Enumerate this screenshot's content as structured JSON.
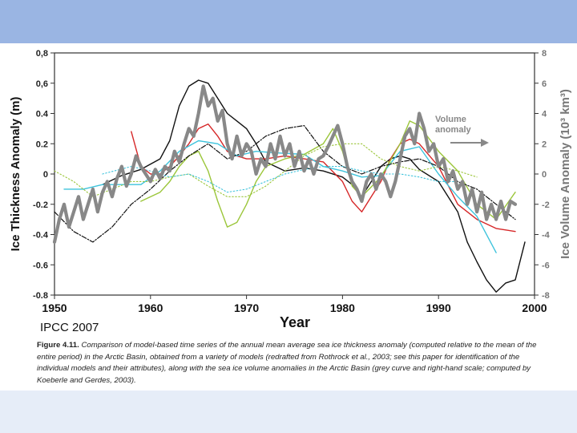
{
  "source_label": "IPCC 2007",
  "caption": {
    "lead": "Figure 4.11.",
    "text": "Comparison of model-based time series of the annual mean average sea ice thickness anomaly (computed relative to the mean of the entire period) in the Arctic Basin, obtained from a variety of models (redrafted from Rothrock et al., 2003; see this paper for identification of the individual models and their attributes), along with the sea ice volume anomalies in the Arctic Basin (grey curve and right-hand scale; computed by Koeberle and Gerdes, 2003)."
  },
  "chart_data": {
    "type": "line",
    "title": "",
    "xlabel": "Year",
    "ylabel": "Ice Thickness Anomaly (m)",
    "ylabel_right": "Ice Volume Anomaly (10³ km³)",
    "xlim": [
      1950,
      2000
    ],
    "ylim": [
      -0.8,
      0.8
    ],
    "ylim_right": [
      -8,
      8
    ],
    "x_ticks": [
      "1950",
      "1960",
      "1970",
      "1980",
      "1990",
      "2000"
    ],
    "y_ticks": [
      "0,8",
      "0,6",
      "0.4",
      "0.2",
      "0",
      "-0.2",
      "-0.4",
      "-0.6",
      "-0.8"
    ],
    "y_ticks_right": [
      "8",
      "6",
      "4",
      "2",
      "0",
      "-2",
      "-4",
      "-6",
      "-8"
    ],
    "grid": false,
    "annotation": {
      "text_line1": "Volume",
      "text_line2": "anomaly",
      "x": 1990,
      "y": 0.27,
      "arrow_color": "#888888"
    },
    "series": [
      {
        "color": "#111111",
        "axis": "left",
        "style": "solid",
        "x": [
          1955,
          1957,
          1959,
          1961,
          1962,
          1963,
          1964,
          1965,
          1966,
          1967,
          1968,
          1969,
          1970,
          1971,
          1972,
          1974,
          1976,
          1978,
          1980,
          1981,
          1982,
          1983,
          1984,
          1985,
          1986,
          1987,
          1988,
          1990,
          1992,
          1993,
          1994,
          1995,
          1996,
          1997,
          1998,
          1999
        ],
        "y": [
          -0.07,
          -0.01,
          0.03,
          0.1,
          0.22,
          0.45,
          0.58,
          0.62,
          0.6,
          0.5,
          0.4,
          0.35,
          0.3,
          0.2,
          0.08,
          0.02,
          0.04,
          0.02,
          -0.02,
          -0.07,
          -0.15,
          -0.05,
          0.05,
          0.1,
          0.12,
          0.1,
          0.03,
          -0.05,
          -0.25,
          -0.45,
          -0.58,
          -0.7,
          -0.78,
          -0.72,
          -0.7,
          -0.45
        ]
      },
      {
        "color": "#d62728",
        "axis": "left",
        "style": "solid",
        "x": [
          1958,
          1959,
          1960,
          1961,
          1962,
          1963,
          1964,
          1965,
          1966,
          1967,
          1968,
          1969,
          1970,
          1971,
          1972,
          1974,
          1976,
          1978,
          1980,
          1981,
          1982,
          1983,
          1984,
          1985,
          1986,
          1987,
          1988,
          1990,
          1992,
          1994,
          1996,
          1997,
          1998
        ],
        "y": [
          0.28,
          0.05,
          0.0,
          0.0,
          0.05,
          0.12,
          0.2,
          0.3,
          0.33,
          0.25,
          0.15,
          0.12,
          0.1,
          0.1,
          0.1,
          0.12,
          0.1,
          0.08,
          -0.05,
          -0.18,
          -0.25,
          -0.15,
          -0.05,
          0.1,
          0.2,
          0.23,
          0.2,
          0.05,
          -0.2,
          -0.3,
          -0.36,
          -0.37,
          -0.38
        ]
      },
      {
        "color": "#3ec3dc",
        "axis": "left",
        "style": "solid",
        "x": [
          1951,
          1953,
          1955,
          1957,
          1959,
          1961,
          1963,
          1965,
          1967,
          1969,
          1971,
          1973,
          1976,
          1978,
          1980,
          1982,
          1984,
          1986,
          1988,
          1990,
          1992,
          1994,
          1996
        ],
        "y": [
          -0.1,
          -0.1,
          -0.07,
          -0.07,
          -0.07,
          0.02,
          0.15,
          0.22,
          0.2,
          0.12,
          0.15,
          0.14,
          0.13,
          0.05,
          0.02,
          -0.02,
          -0.01,
          0.15,
          0.18,
          0.0,
          -0.15,
          -0.28,
          -0.52
        ]
      },
      {
        "color": "#9bc63a",
        "axis": "left",
        "style": "solid",
        "x": [
          1959,
          1961,
          1962,
          1963,
          1964,
          1965,
          1966,
          1967,
          1968,
          1969,
          1970,
          1971,
          1972,
          1974,
          1976,
          1978,
          1979,
          1980,
          1981,
          1982,
          1984,
          1986,
          1987,
          1988,
          1990,
          1992,
          1994,
          1996,
          1998
        ],
        "y": [
          -0.18,
          -0.12,
          -0.05,
          0.05,
          0.12,
          0.15,
          0.02,
          -0.18,
          -0.35,
          -0.32,
          -0.2,
          -0.05,
          0.05,
          0.1,
          0.13,
          0.2,
          0.3,
          0.15,
          -0.08,
          -0.15,
          -0.02,
          0.2,
          0.35,
          0.32,
          0.15,
          0.02,
          -0.2,
          -0.3,
          -0.12
        ]
      },
      {
        "color": "#111111",
        "axis": "left",
        "style": "dashdot",
        "x": [
          1950,
          1952,
          1954,
          1956,
          1958,
          1960,
          1962,
          1964,
          1966,
          1968,
          1970,
          1972,
          1974,
          1976,
          1978,
          1980,
          1982,
          1984,
          1986,
          1988,
          1990,
          1992,
          1994,
          1996,
          1998
        ],
        "y": [
          -0.25,
          -0.38,
          -0.45,
          -0.35,
          -0.2,
          -0.1,
          0.02,
          0.12,
          0.2,
          0.1,
          0.15,
          0.25,
          0.3,
          0.32,
          0.15,
          0.05,
          0.0,
          0.05,
          0.08,
          0.1,
          0.05,
          -0.05,
          -0.1,
          -0.2,
          -0.3
        ]
      },
      {
        "color": "#9bc63a",
        "axis": "left",
        "style": "dotted",
        "x": [
          1950,
          1952,
          1954,
          1956,
          1958,
          1960,
          1962,
          1964,
          1966,
          1968,
          1970,
          1972,
          1974,
          1976,
          1978,
          1980,
          1982,
          1984,
          1986,
          1988,
          1990,
          1992,
          1994
        ],
        "y": [
          0.02,
          -0.05,
          -0.15,
          -0.1,
          -0.05,
          -0.05,
          -0.02,
          0.0,
          -0.08,
          -0.15,
          -0.15,
          -0.08,
          0.02,
          0.12,
          0.18,
          0.2,
          0.2,
          0.1,
          0.05,
          0.02,
          0.05,
          0.02,
          -0.02
        ]
      },
      {
        "color": "#3ec3dc",
        "axis": "left",
        "style": "dotted",
        "x": [
          1955,
          1958,
          1960,
          1962,
          1964,
          1966,
          1968,
          1970,
          1972,
          1974,
          1976,
          1978,
          1980,
          1982,
          1984,
          1986,
          1988,
          1990,
          1992
        ],
        "y": [
          0.0,
          0.05,
          0.02,
          -0.02,
          0.0,
          -0.05,
          -0.12,
          -0.1,
          -0.05,
          0.0,
          0.03,
          0.05,
          0.05,
          0.02,
          0.0,
          0.0,
          -0.02,
          -0.05,
          -0.05
        ]
      },
      {
        "color": "#888888",
        "axis": "right",
        "style": "thick",
        "x": [
          1950,
          1950.5,
          1951,
          1951.5,
          1952,
          1952.5,
          1953,
          1953.5,
          1954,
          1954.5,
          1955,
          1955.5,
          1956,
          1956.5,
          1957,
          1957.5,
          1958,
          1958.5,
          1959,
          1959.5,
          1960,
          1960.5,
          1961,
          1961.5,
          1962,
          1962.5,
          1963,
          1963.5,
          1964,
          1964.5,
          1965,
          1965.5,
          1966,
          1966.5,
          1967,
          1967.5,
          1968,
          1968.5,
          1969,
          1969.5,
          1970,
          1970.5,
          1971,
          1971.5,
          1972,
          1972.5,
          1973,
          1973.5,
          1974,
          1974.5,
          1975,
          1975.5,
          1976,
          1976.5,
          1977,
          1977.5,
          1978,
          1978.5,
          1979,
          1979.5,
          1980,
          1980.5,
          1981,
          1981.5,
          1982,
          1982.5,
          1983,
          1983.5,
          1984,
          1984.5,
          1985,
          1985.5,
          1986,
          1986.5,
          1987,
          1987.5,
          1988,
          1988.5,
          1989,
          1989.5,
          1990,
          1990.5,
          1991,
          1991.5,
          1992,
          1992.5,
          1993,
          1993.5,
          1994,
          1994.5,
          1995,
          1995.5,
          1996,
          1996.5,
          1997,
          1997.5,
          1998
        ],
        "y": [
          -4.5,
          -3.0,
          -2.0,
          -3.5,
          -2.5,
          -1.5,
          -3.0,
          -2.0,
          -1.0,
          -2.5,
          -1.2,
          -0.5,
          -1.5,
          -0.3,
          0.5,
          -0.8,
          0.0,
          1.2,
          0.5,
          0.0,
          -0.5,
          0.3,
          -0.3,
          0.5,
          0.2,
          1.5,
          0.8,
          2.0,
          3.0,
          2.5,
          4.0,
          5.8,
          4.5,
          5.0,
          3.5,
          4.2,
          2.0,
          1.0,
          2.5,
          1.2,
          2.0,
          1.5,
          0.0,
          1.0,
          0.5,
          2.0,
          1.0,
          2.5,
          1.2,
          2.0,
          0.5,
          1.5,
          0.2,
          1.0,
          0.0,
          1.0,
          1.2,
          1.8,
          2.5,
          3.2,
          2.0,
          0.5,
          -0.5,
          -1.0,
          -1.8,
          -0.5,
          0.0,
          -1.0,
          0.0,
          -0.5,
          -1.5,
          -0.5,
          1.0,
          2.5,
          3.0,
          2.0,
          4.0,
          3.0,
          1.5,
          2.0,
          0.5,
          1.0,
          -0.5,
          0.2,
          -1.0,
          -0.5,
          -2.0,
          -1.0,
          -2.5,
          -1.2,
          -3.0,
          -2.0,
          -3.0,
          -1.8,
          -3.0,
          -1.8,
          -2.0
        ]
      }
    ]
  }
}
